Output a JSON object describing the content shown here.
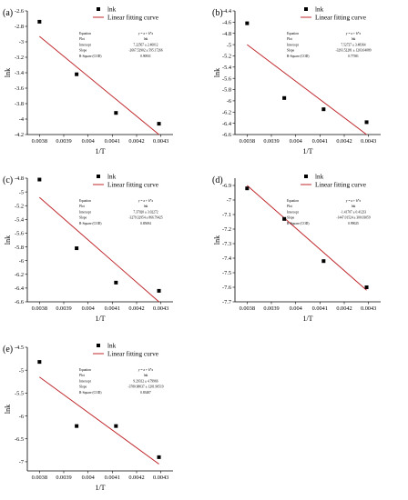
{
  "figure": {
    "legend": {
      "points_label": "lnk",
      "line_label": "Linear fitting curve"
    },
    "stats_labels": [
      "Equation",
      "Plot",
      "Intercept",
      "Slope",
      "R-Square (COD)"
    ],
    "colors": {
      "points": "#000000",
      "fit": "#c0282d",
      "axis": "#000000"
    }
  },
  "chart_data": [
    {
      "type": "scatter",
      "panel": "(a)",
      "xlabel": "1/T",
      "ylabel": "lnk",
      "xlim": [
        0.00375,
        0.00435
      ],
      "ylim": [
        -4.2,
        -2.6
      ],
      "xticks": [
        "0.0038",
        "0.0039",
        "0.004",
        "0.0041",
        "0.0042",
        "0.0043"
      ],
      "yticks": [
        "-2.6",
        "-2.8",
        "-3",
        "-3.2",
        "-3.4",
        "-3.6",
        "-3.8",
        "-4",
        "-4.2"
      ],
      "ytick_values": [
        -2.6,
        -2.8,
        -3.0,
        -3.2,
        -3.4,
        -3.6,
        -3.8,
        -4.0,
        -4.2
      ],
      "series": [
        {
          "name": "lnk",
          "x": [
            0.0038,
            0.003953,
            0.004115,
            0.004292
          ],
          "y": [
            -2.74,
            -3.42,
            -3.92,
            -4.06
          ]
        },
        {
          "name": "Linear fitting curve",
          "x": [
            0.0038,
            0.004292
          ],
          "y": [
            -2.93,
            -4.2
          ]
        }
      ],
      "stats": [
        "y = a + b*x",
        "lnk",
        "7.22567 ± 2.46012",
        "-2667.52902 ± 595.17266",
        "0.90931"
      ]
    },
    {
      "type": "scatter",
      "panel": "(b)",
      "xlabel": "1/T",
      "ylabel": "lnk",
      "xlim": [
        0.00375,
        0.00435
      ],
      "ylim": [
        -6.6,
        -4.4
      ],
      "xticks": [
        "0.0038",
        "0.0039",
        "0.004",
        "0.0041",
        "0.0042",
        "0.0043"
      ],
      "yticks": [
        "-4.4",
        "-4.6",
        "-4.8",
        "-5",
        "-5.2",
        "-5.4",
        "-5.6",
        "-5.8",
        "-6",
        "-6.2",
        "-6.4",
        "-6.6"
      ],
      "ytick_values": [
        -4.4,
        -4.6,
        -4.8,
        -5.0,
        -5.2,
        -5.4,
        -5.6,
        -5.8,
        -6.0,
        -6.2,
        -6.4,
        -6.6
      ],
      "series": [
        {
          "name": "lnk",
          "x": [
            0.0038,
            0.003953,
            0.004115,
            0.004292
          ],
          "y": [
            -4.62,
            -5.95,
            -6.15,
            -6.38
          ]
        },
        {
          "name": "Linear fitting curve",
          "x": [
            0.0038,
            0.004292
          ],
          "y": [
            -5.0,
            -6.6
          ]
        }
      ],
      "stats": [
        "y = a + b*x",
        "lnk",
        "7.52727 ± 3.48364",
        "-3293.52281 ± 1203.04089",
        "0.77581"
      ]
    },
    {
      "type": "scatter",
      "panel": "(c)",
      "xlabel": "1/T",
      "ylabel": "lnk",
      "xlim": [
        0.00375,
        0.00435
      ],
      "ylim": [
        -6.6,
        -4.8
      ],
      "xticks": [
        "0.0038",
        "0.0039",
        "0.004",
        "0.0041",
        "0.0042",
        "0.0043"
      ],
      "yticks": [
        "-4.8",
        "-5",
        "-5.2",
        "-5.4",
        "-5.6",
        "-5.8",
        "-6",
        "-6.2",
        "-6.4",
        "-6.6"
      ],
      "ytick_values": [
        -4.8,
        -5.0,
        -5.2,
        -5.4,
        -5.6,
        -5.8,
        -6.0,
        -6.2,
        -6.4,
        -6.6
      ],
      "series": [
        {
          "name": "lnk",
          "x": [
            0.0038,
            0.003953,
            0.004115,
            0.004292
          ],
          "y": [
            -4.82,
            -5.82,
            -6.32,
            -6.44
          ]
        },
        {
          "name": "Linear fitting curve",
          "x": [
            0.0038,
            0.004292
          ],
          "y": [
            -5.08,
            -6.6
          ]
        }
      ],
      "stats": [
        "y = a + b*x",
        "lnk",
        "7.37020 ± 3.02272",
        "-3279.32954 ± 866.79425",
        "0.85694"
      ]
    },
    {
      "type": "scatter",
      "panel": "(d)",
      "xlabel": "1/T",
      "ylabel": "lnk",
      "xlim": [
        0.00375,
        0.00435
      ],
      "ylim": [
        -7.7,
        -6.85
      ],
      "xticks": [
        "0.0038",
        "0.0039",
        "0.004",
        "0.0041",
        "0.0042",
        "0.0043"
      ],
      "yticks": [
        "-6.9",
        "-7",
        "-7.1",
        "-7.2",
        "-7.3",
        "-7.4",
        "-7.5",
        "-7.6",
        "-7.7"
      ],
      "ytick_values": [
        -6.9,
        -7.0,
        -7.1,
        -7.2,
        -7.3,
        -7.4,
        -7.5,
        -7.6,
        -7.7
      ],
      "series": [
        {
          "name": "lnk",
          "x": [
            0.0038,
            0.003953,
            0.004115,
            0.004292
          ],
          "y": [
            -6.92,
            -7.13,
            -7.42,
            -7.6
          ]
        },
        {
          "name": "Linear fitting curve",
          "x": [
            0.0038,
            0.004292
          ],
          "y": [
            -6.9,
            -7.62
          ]
        }
      ],
      "stats": [
        "y = a + b*x",
        "lnk",
        "-1.41707 ± 0.41233",
        "-1447.01524 ± 300.03059",
        "0.99025"
      ]
    },
    {
      "type": "scatter",
      "panel": "(e)",
      "xlabel": "1/T",
      "ylabel": "lnk",
      "xlim": [
        0.00375,
        0.00435
      ],
      "ylim": [
        -7.2,
        -4.5
      ],
      "xticks": [
        "0.0038",
        "0.0039",
        "0.004",
        "0.0041",
        "0.0042",
        "0.0043"
      ],
      "yticks": [
        "-4.5",
        "-5",
        "-5.5",
        "-6",
        "-6.5",
        "-7"
      ],
      "ytick_values": [
        -4.5,
        -5.0,
        -5.5,
        -6.0,
        -6.5,
        -7.0
      ],
      "series": [
        {
          "name": "lnk",
          "x": [
            0.0038,
            0.003953,
            0.004115,
            0.004292
          ],
          "y": [
            -4.82,
            -6.22,
            -6.22,
            -6.9
          ]
        },
        {
          "name": "Linear fitting curve",
          "x": [
            0.0038,
            0.004292
          ],
          "y": [
            -5.15,
            -7.05
          ]
        }
      ],
      "stats": [
        "y = a + b*x",
        "lnk",
        "9.29312 ± 4.79966",
        "-3780.68037 ± 1201.90519",
        "0.83487"
      ]
    }
  ]
}
